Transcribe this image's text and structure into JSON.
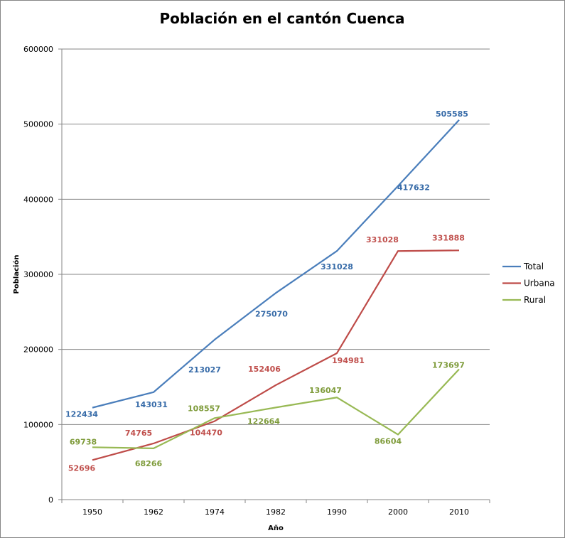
{
  "chart_data": {
    "type": "line",
    "title": "Población en el cantón Cuenca",
    "xlabel": "Año",
    "ylabel": "Población",
    "categories": [
      "1950",
      "1962",
      "1974",
      "1982",
      "1990",
      "2000",
      "2010"
    ],
    "ylim": [
      0,
      600000
    ],
    "yticks": [
      "0",
      "100000",
      "200000",
      "300000",
      "400000",
      "500000",
      "600000"
    ],
    "grid": true,
    "legend_position": "right",
    "series": [
      {
        "name": "Total",
        "color": "#4A7EBB",
        "label_color": "#376BA8",
        "values": [
          122434,
          143031,
          213027,
          275070,
          331028,
          417632,
          505585
        ]
      },
      {
        "name": "Urbana",
        "color": "#BE4B48",
        "label_color": "#C0504D",
        "values": [
          52696,
          74765,
          104470,
          152406,
          194981,
          331028,
          331888
        ]
      },
      {
        "name": "Rural",
        "color": "#98B954",
        "label_color": "#7E9B3A",
        "values": [
          69738,
          68266,
          108557,
          122664,
          136047,
          86604,
          173697
        ]
      }
    ]
  }
}
